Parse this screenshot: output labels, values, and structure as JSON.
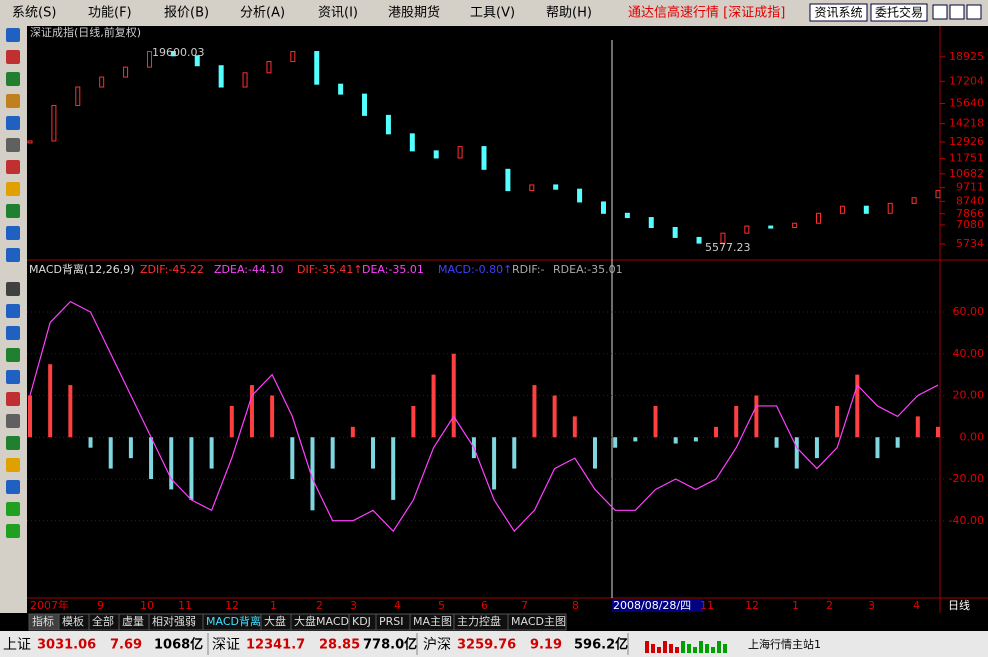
{
  "menu": [
    "系统(S)",
    "功能(F)",
    "报价(B)",
    "分析(A)",
    "资讯(I)",
    "港股期货",
    "工具(V)",
    "帮助(H)"
  ],
  "app_title": "通达信高速行情 [深证成指]",
  "buttons": [
    "资讯系统",
    "委托交易"
  ],
  "price_panel": {
    "title": "深证成指(日线,前复权)",
    "high_label": "19600.03",
    "low_label": "5577.23",
    "ylim": [
      4750,
      21100
    ],
    "yticks": [
      18925,
      17204,
      15640,
      14218,
      12926,
      11751,
      10682,
      9711,
      8740,
      7866,
      7080,
      5734
    ],
    "closes": [
      13000,
      15500,
      16800,
      17500,
      18200,
      19300,
      19000,
      18300,
      16800,
      17800,
      18600,
      19300,
      17000,
      16300,
      14800,
      13500,
      12300,
      11800,
      12600,
      11000,
      9500,
      9900,
      9600,
      8700,
      7900,
      7600,
      6900,
      6200,
      5800,
      6500,
      7000,
      6900,
      7200,
      7900,
      8400,
      7900,
      8600,
      9000,
      9500
    ]
  },
  "macd_panel": {
    "header": [
      "MACD背离(12,26,9)",
      "ZDIF:-45.22",
      "ZDEA:-44.10",
      "DIF:-35.41↑",
      "DEA:-35.01",
      "MACD:-0.80↑",
      "RDIF:-",
      "RDEA:-35.01"
    ],
    "ylim": [
      -77,
      83
    ],
    "yticks": [
      {
        "value": 60,
        "label": "60.00"
      },
      {
        "value": 40,
        "label": "40.00"
      },
      {
        "value": 20,
        "label": "20.00"
      },
      {
        "value": 0,
        "label": "0.00"
      },
      {
        "value": -20,
        "label": "-20.00"
      },
      {
        "value": -40,
        "label": "-40.00"
      }
    ],
    "histogram": [
      20,
      35,
      25,
      -5,
      -15,
      -10,
      -20,
      -25,
      -30,
      -15,
      15,
      25,
      20,
      -20,
      -35,
      -15,
      5,
      -15,
      -30,
      15,
      30,
      40,
      -10,
      -25,
      -15,
      25,
      20,
      10,
      -15,
      -5,
      -2,
      15,
      -3,
      -2,
      5,
      15,
      20,
      -5,
      -15,
      -10,
      15,
      30,
      -10,
      -5,
      10,
      5
    ],
    "dif": [
      20,
      55,
      65,
      60,
      40,
      20,
      0,
      -20,
      -30,
      -35,
      -10,
      20,
      30,
      10,
      -20,
      -40,
      -40,
      -35,
      -45,
      -30,
      -5,
      10,
      -5,
      -30,
      -45,
      -35,
      -15,
      -10,
      -25,
      -35,
      -35,
      -25,
      -20,
      -25,
      -20,
      -5,
      15,
      15,
      -5,
      -15,
      -5,
      25,
      15,
      10,
      20,
      25
    ]
  },
  "date_axis": [
    "2007年",
    "9",
    "10",
    "11",
    "12",
    "1",
    "2",
    "3",
    "4",
    "5",
    "6",
    "7",
    "8",
    "2008/08/28/四",
    "11",
    "12",
    "1",
    "2",
    "3",
    "4",
    "日线"
  ],
  "tabs": [
    "指标",
    "模板",
    "全部",
    "虚量",
    "相对强弱",
    "MACD背离",
    "大盘",
    "大盘MACD",
    "KDJ",
    "PRSI",
    "MA主图",
    "主力控盘",
    "MACD主图"
  ],
  "status": [
    {
      "name": "上证",
      "price": "3031.06",
      "change": "7.69",
      "amount": "1068亿"
    },
    {
      "name": "深证",
      "price": "12341.7",
      "change": "28.85",
      "amount": "778.0亿"
    },
    {
      "name": "沪深",
      "price": "3259.76",
      "change": "9.19",
      "amount": "596.2亿"
    }
  ],
  "server": "上海行情主站1"
}
